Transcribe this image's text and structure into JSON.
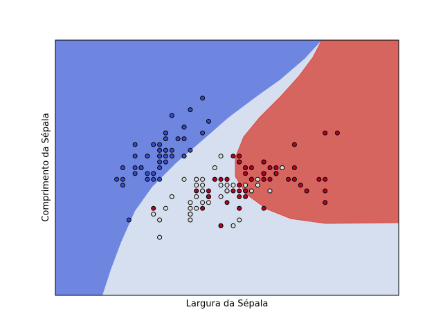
{
  "chart_data": {
    "type": "scatter",
    "xlabel": "Largura da Sépala",
    "ylabel": "Comprimento da Sépala",
    "xlim": [
      3.3,
      8.9
    ],
    "ylim": [
      1.0,
      5.4
    ],
    "ticks": "none",
    "grid": false,
    "legend": "none",
    "regions": {
      "description": "decision regions of an SVM (RBF) classifier",
      "colors": {
        "class_0": "#6f86e0",
        "class_1": "#d6dff0",
        "class_2": "#d6645f"
      }
    },
    "point_colors": {
      "class_0": "#3b4cc0",
      "class_1": "#dddddd",
      "class_2": "#b40426"
    },
    "series": [
      {
        "class": 0,
        "points": [
          [
            5.1,
            3.5
          ],
          [
            4.9,
            3.0
          ],
          [
            4.7,
            3.2
          ],
          [
            4.6,
            3.1
          ],
          [
            5.0,
            3.6
          ],
          [
            5.4,
            3.9
          ],
          [
            4.6,
            3.4
          ],
          [
            5.0,
            3.4
          ],
          [
            4.4,
            2.9
          ],
          [
            4.9,
            3.1
          ],
          [
            5.4,
            3.7
          ],
          [
            4.8,
            3.4
          ],
          [
            4.8,
            3.0
          ],
          [
            4.3,
            3.0
          ],
          [
            5.8,
            4.0
          ],
          [
            5.7,
            4.4
          ],
          [
            5.4,
            3.9
          ],
          [
            5.1,
            3.5
          ],
          [
            5.7,
            3.8
          ],
          [
            5.1,
            3.8
          ],
          [
            5.4,
            3.4
          ],
          [
            5.1,
            3.7
          ],
          [
            4.6,
            3.6
          ],
          [
            5.1,
            3.3
          ],
          [
            4.8,
            3.4
          ],
          [
            5.0,
            3.0
          ],
          [
            5.0,
            3.4
          ],
          [
            5.2,
            3.5
          ],
          [
            5.2,
            3.4
          ],
          [
            4.7,
            3.2
          ],
          [
            4.8,
            3.1
          ],
          [
            5.4,
            3.4
          ],
          [
            5.2,
            4.1
          ],
          [
            5.5,
            4.2
          ],
          [
            4.9,
            3.1
          ],
          [
            5.0,
            3.2
          ],
          [
            5.5,
            3.5
          ],
          [
            4.9,
            3.6
          ],
          [
            4.4,
            3.0
          ],
          [
            5.1,
            3.4
          ],
          [
            5.0,
            3.5
          ],
          [
            4.5,
            2.3
          ],
          [
            4.4,
            3.2
          ],
          [
            5.0,
            3.5
          ],
          [
            5.1,
            3.8
          ],
          [
            4.8,
            3.0
          ],
          [
            5.1,
            3.8
          ],
          [
            4.6,
            3.2
          ],
          [
            5.3,
            3.7
          ],
          [
            5.0,
            3.3
          ]
        ]
      },
      {
        "class": 1,
        "points": [
          [
            7.0,
            3.2
          ],
          [
            6.4,
            3.2
          ],
          [
            6.9,
            3.1
          ],
          [
            5.5,
            2.3
          ],
          [
            6.5,
            2.8
          ],
          [
            5.7,
            2.8
          ],
          [
            6.3,
            3.3
          ],
          [
            4.9,
            2.4
          ],
          [
            6.6,
            2.9
          ],
          [
            5.2,
            2.7
          ],
          [
            5.0,
            2.0
          ],
          [
            5.9,
            3.0
          ],
          [
            6.0,
            2.2
          ],
          [
            6.1,
            2.9
          ],
          [
            5.6,
            2.9
          ],
          [
            6.7,
            3.1
          ],
          [
            5.6,
            3.0
          ],
          [
            5.8,
            2.7
          ],
          [
            6.2,
            2.2
          ],
          [
            5.6,
            2.5
          ],
          [
            5.9,
            3.2
          ],
          [
            6.1,
            2.8
          ],
          [
            6.3,
            2.5
          ],
          [
            6.1,
            2.8
          ],
          [
            6.4,
            2.9
          ],
          [
            6.6,
            3.0
          ],
          [
            6.8,
            2.8
          ],
          [
            6.7,
            3.0
          ],
          [
            6.0,
            2.9
          ],
          [
            5.7,
            2.6
          ],
          [
            5.5,
            2.4
          ],
          [
            5.5,
            2.4
          ],
          [
            5.8,
            2.7
          ],
          [
            6.0,
            2.7
          ],
          [
            5.4,
            3.0
          ],
          [
            6.0,
            3.4
          ],
          [
            6.7,
            3.1
          ],
          [
            6.3,
            2.3
          ],
          [
            5.6,
            3.0
          ],
          [
            5.5,
            2.5
          ],
          [
            5.5,
            2.6
          ],
          [
            6.1,
            3.0
          ],
          [
            5.8,
            2.6
          ],
          [
            5.0,
            2.3
          ],
          [
            5.6,
            2.7
          ],
          [
            5.7,
            3.0
          ],
          [
            5.7,
            2.9
          ],
          [
            6.2,
            2.9
          ],
          [
            5.1,
            2.5
          ],
          [
            5.7,
            2.8
          ]
        ]
      },
      {
        "class": 2,
        "points": [
          [
            6.3,
            3.3
          ],
          [
            5.8,
            2.7
          ],
          [
            7.1,
            3.0
          ],
          [
            6.3,
            2.9
          ],
          [
            6.5,
            3.0
          ],
          [
            7.6,
            3.0
          ],
          [
            4.9,
            2.5
          ],
          [
            7.3,
            2.9
          ],
          [
            6.7,
            2.5
          ],
          [
            7.2,
            3.6
          ],
          [
            6.5,
            3.2
          ],
          [
            6.4,
            2.7
          ],
          [
            6.8,
            3.0
          ],
          [
            5.7,
            2.5
          ],
          [
            5.8,
            2.8
          ],
          [
            6.4,
            3.2
          ],
          [
            6.5,
            3.0
          ],
          [
            7.7,
            3.8
          ],
          [
            7.7,
            2.6
          ],
          [
            6.0,
            2.2
          ],
          [
            6.9,
            3.2
          ],
          [
            5.6,
            2.8
          ],
          [
            7.7,
            2.8
          ],
          [
            6.3,
            2.7
          ],
          [
            6.7,
            3.3
          ],
          [
            7.2,
            3.2
          ],
          [
            6.2,
            2.8
          ],
          [
            6.1,
            3.0
          ],
          [
            6.4,
            2.8
          ],
          [
            7.2,
            3.0
          ],
          [
            7.4,
            2.8
          ],
          [
            7.9,
            3.8
          ],
          [
            6.4,
            2.8
          ],
          [
            6.3,
            2.8
          ],
          [
            6.1,
            2.6
          ],
          [
            7.7,
            3.0
          ],
          [
            6.3,
            3.4
          ],
          [
            6.4,
            3.1
          ],
          [
            6.0,
            3.0
          ],
          [
            6.9,
            3.1
          ],
          [
            6.7,
            3.1
          ],
          [
            6.9,
            3.1
          ],
          [
            5.8,
            2.7
          ],
          [
            6.8,
            3.2
          ],
          [
            6.7,
            3.3
          ],
          [
            6.7,
            3.0
          ],
          [
            6.3,
            2.5
          ],
          [
            6.5,
            3.0
          ],
          [
            6.2,
            3.4
          ],
          [
            5.9,
            3.0
          ]
        ]
      }
    ]
  }
}
